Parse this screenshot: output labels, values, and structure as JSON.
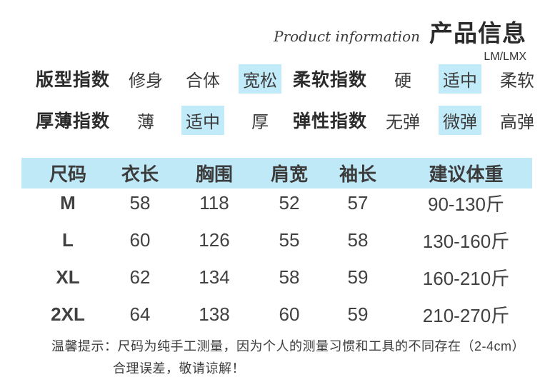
{
  "colors": {
    "highlight_bg": "#c2ebf9",
    "table_header_bg": "#c0e9f8",
    "text_dark": "#2c2c2c"
  },
  "header": {
    "subtitle_en": "Product information",
    "title": "产品信息",
    "code": "LM/LMX"
  },
  "indices": [
    {
      "label": "版型指数",
      "options": [
        {
          "text": "修身",
          "highlight": false
        },
        {
          "text": "合体",
          "highlight": false
        },
        {
          "text": "宽松",
          "highlight": true
        }
      ]
    },
    {
      "label": "柔软指数",
      "options": [
        {
          "text": "硬",
          "highlight": false
        },
        {
          "text": "适中",
          "highlight": true
        },
        {
          "text": "柔软",
          "highlight": false
        }
      ]
    },
    {
      "label": "厚薄指数",
      "options": [
        {
          "text": "薄",
          "highlight": false
        },
        {
          "text": "适中",
          "highlight": true
        },
        {
          "text": "厚",
          "highlight": false
        }
      ]
    },
    {
      "label": "弹性指数",
      "options": [
        {
          "text": "无弹",
          "highlight": false
        },
        {
          "text": "微弹",
          "highlight": true
        },
        {
          "text": "高弹",
          "highlight": false
        }
      ]
    }
  ],
  "size_table": {
    "headers": [
      "尺码",
      "衣长",
      "胸围",
      "肩宽",
      "袖长",
      "建议体重"
    ],
    "rows": [
      [
        "M",
        "58",
        "118",
        "52",
        "57",
        "90-130斤"
      ],
      [
        "L",
        "60",
        "126",
        "55",
        "58",
        "130-160斤"
      ],
      [
        "XL",
        "62",
        "134",
        "58",
        "59",
        "160-210斤"
      ],
      [
        "2XL",
        "64",
        "138",
        "60",
        "59",
        "210-270斤"
      ]
    ]
  },
  "note": {
    "line1": "温馨提示：尺码为纯手工测量，因为个人的测量习惯和工具的不同存在（2-4cm）",
    "line2": "合理误差，敬请谅解！"
  }
}
